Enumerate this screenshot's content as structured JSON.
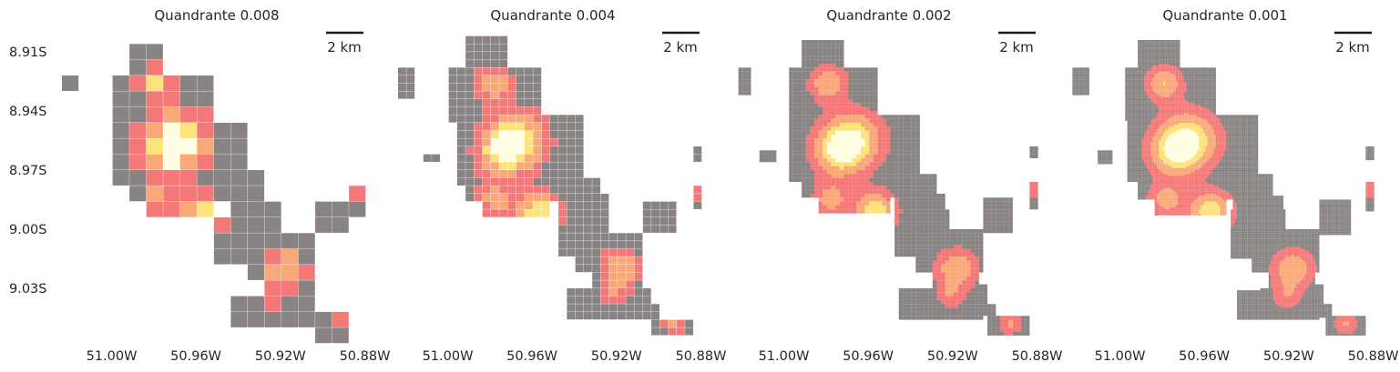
{
  "chart_data": {
    "type": "heatmap",
    "ytick_labels": [
      "8.91S",
      "8.94S",
      "8.97S",
      "9.00S",
      "9.03S"
    ],
    "xtick_labels": [
      "51.00W",
      "50.96W",
      "50.92W",
      "50.88W"
    ],
    "panels": [
      {
        "title": "Quandrante 0.008",
        "cell_size_deg": 0.008,
        "scalebar_label": "2 km"
      },
      {
        "title": "Quandrante 0.004",
        "cell_size_deg": 0.004,
        "scalebar_label": "2 km"
      },
      {
        "title": "Quandrante 0.002",
        "cell_size_deg": 0.002,
        "scalebar_label": "2 km"
      },
      {
        "title": "Quandrante 0.001",
        "cell_size_deg": 0.001,
        "scalebar_label": "2 km"
      }
    ],
    "colors": {
      "empty_cell": "#7f7a78",
      "low": "#f46d6d",
      "mid": "#f9a26c",
      "high": "#fde16e",
      "peak": "#fffde0"
    }
  }
}
